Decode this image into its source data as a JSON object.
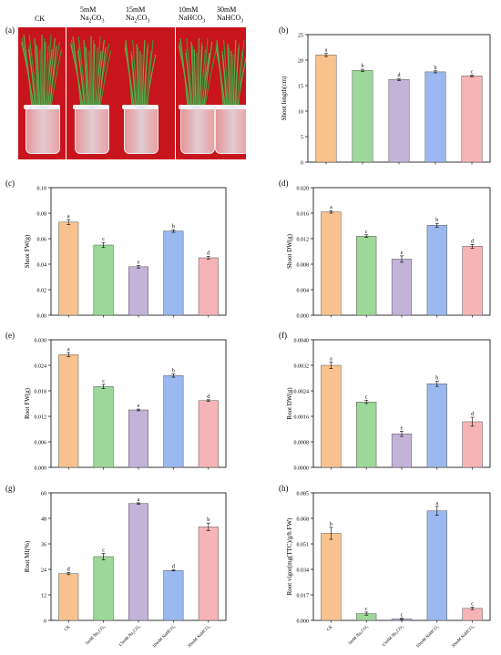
{
  "photo_panel": {
    "letter": "(a)",
    "labels": [
      {
        "line1": "CK",
        "line2": "",
        "sub": ""
      },
      {
        "line1": "5mM",
        "line2": "Na",
        "sub": "2",
        "tail": "CO",
        "sub2": "3"
      },
      {
        "line1": "15mM",
        "line2": "Na",
        "sub": "2",
        "tail": "CO",
        "sub2": "3"
      },
      {
        "line1": "10mM",
        "line2": "NaHCO",
        "sub": "3",
        "tail": "",
        "sub2": ""
      },
      {
        "line1": "30mM",
        "line2": "NaHCO",
        "sub": "3",
        "tail": "",
        "sub2": ""
      }
    ],
    "colors": {
      "background": "#c8141c",
      "leaf": "#3e9a3a",
      "pot": "#e8edf1"
    }
  },
  "categories": [
    "CK",
    "5mM Na₂CO₃",
    "15mM Na₂CO₃",
    "10mM NaHCO₃",
    "30mM NaHCO₃"
  ],
  "bar_colors": [
    "#f9c38f",
    "#9dd89a",
    "#c3b3d9",
    "#9bb8f0",
    "#f7b4b6"
  ],
  "chart_data": [
    {
      "letter": "(b)",
      "type": "bar",
      "ylabel": "Shoot length(cm)",
      "ylim": [
        0,
        25
      ],
      "ticks": [
        "0",
        "5",
        "10",
        "15",
        "20",
        "25"
      ],
      "tick_values": [
        0,
        5,
        10,
        15,
        20,
        25
      ],
      "values": [
        21.0,
        18.0,
        16.2,
        17.7,
        16.9
      ],
      "errors": [
        0.3,
        0.2,
        0.2,
        0.2,
        0.15
      ],
      "letters": [
        "a",
        "b",
        "d",
        "b",
        "c"
      ],
      "show_x_labels": false
    },
    {
      "letter": "(c)",
      "type": "bar",
      "ylabel": "Shoot FW(g)",
      "ylim": [
        0,
        0.1
      ],
      "ticks": [
        "0.00",
        "0.02",
        "0.04",
        "0.06",
        "0.08",
        "0.10"
      ],
      "tick_values": [
        0,
        0.02,
        0.04,
        0.06,
        0.08,
        0.1
      ],
      "values": [
        0.073,
        0.055,
        0.038,
        0.066,
        0.045
      ],
      "errors": [
        0.002,
        0.002,
        0.001,
        0.001,
        0.001
      ],
      "letters": [
        "a",
        "c",
        "e",
        "b",
        "d"
      ],
      "show_x_labels": false
    },
    {
      "letter": "(d)",
      "type": "bar",
      "ylabel": "Shoot DW(g)",
      "ylim": [
        0,
        0.02
      ],
      "ticks": [
        "0.000",
        "0.004",
        "0.008",
        "0.012",
        "0.016",
        "0.020"
      ],
      "tick_values": [
        0,
        0.004,
        0.008,
        0.012,
        0.016,
        0.02
      ],
      "values": [
        0.0162,
        0.0124,
        0.0088,
        0.0141,
        0.0108
      ],
      "errors": [
        0.0002,
        0.0002,
        0.0005,
        0.0003,
        0.0003
      ],
      "letters": [
        "a",
        "c",
        "e",
        "b",
        "d"
      ],
      "show_x_labels": false
    },
    {
      "letter": "(e)",
      "type": "bar",
      "ylabel": "Root FW(g)",
      "ylim": [
        0,
        0.03
      ],
      "ticks": [
        "0.000",
        "0.006",
        "0.012",
        "0.018",
        "0.024",
        "0.030"
      ],
      "tick_values": [
        0,
        0.006,
        0.012,
        0.018,
        0.024,
        0.03
      ],
      "values": [
        0.0265,
        0.019,
        0.0135,
        0.0216,
        0.0157
      ],
      "errors": [
        0.0005,
        0.0005,
        0.0002,
        0.0004,
        0.0002
      ],
      "letters": [
        "a",
        "c",
        "e",
        "b",
        "d"
      ],
      "show_x_labels": false
    },
    {
      "letter": "(f)",
      "type": "bar",
      "ylabel": "Root DW(g)",
      "ylim": [
        0,
        0.004
      ],
      "ticks": [
        "0.0000",
        "0.0008",
        "0.0016",
        "0.0024",
        "0.0032",
        "0.0040"
      ],
      "tick_values": [
        0,
        0.0008,
        0.0016,
        0.0024,
        0.0032,
        0.004
      ],
      "values": [
        0.0032,
        0.00205,
        0.00105,
        0.00262,
        0.00143
      ],
      "errors": [
        0.0001,
        5e-05,
        8e-05,
        8e-05,
        0.00014
      ],
      "letters": [
        "a",
        "c",
        "e",
        "b",
        "d"
      ],
      "show_x_labels": false
    },
    {
      "letter": "(g)",
      "type": "bar",
      "ylabel": "Root MI(%)",
      "ylim": [
        0,
        60
      ],
      "ticks": [
        "0",
        "12",
        "24",
        "36",
        "48",
        "60"
      ],
      "tick_values": [
        0,
        12,
        24,
        36,
        48,
        60
      ],
      "values": [
        22,
        30,
        55,
        23.5,
        44
      ],
      "errors": [
        0.5,
        1.5,
        0.3,
        0.2,
        1.8
      ],
      "letters": [
        "d",
        "c",
        "a",
        "d",
        "b"
      ],
      "show_x_labels": true
    },
    {
      "letter": "(h)",
      "type": "bar",
      "ylabel": "Root vigor(mg(TTC)/g/h FW)",
      "ylim": [
        0,
        0.085
      ],
      "ticks": [
        "0.000",
        "0.017",
        "0.034",
        "0.051",
        "0.068",
        "0.085"
      ],
      "tick_values": [
        0,
        0.017,
        0.034,
        0.051,
        0.068,
        0.085
      ],
      "values": [
        0.058,
        0.0045,
        0.001,
        0.073,
        0.008
      ],
      "errors": [
        0.004,
        0.001,
        0.0005,
        0.003,
        0.0008
      ],
      "letters": [
        "b",
        "c",
        "c",
        "a",
        "c"
      ],
      "show_x_labels": true
    }
  ]
}
